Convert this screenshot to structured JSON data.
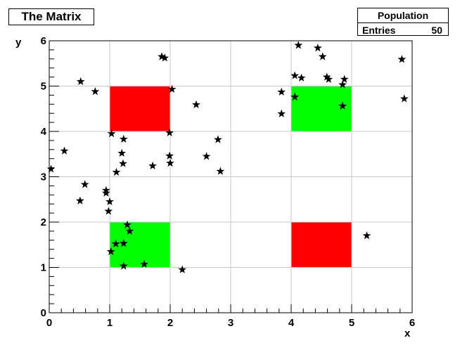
{
  "chart_data": {
    "type": "scatter",
    "title": "The Matrix",
    "xlabel": "x",
    "ylabel": "y",
    "xlim": [
      0,
      6
    ],
    "ylim": [
      0,
      6
    ],
    "grid": true,
    "x_ticks": [
      "0",
      "1",
      "2",
      "3",
      "4",
      "5",
      "6"
    ],
    "y_ticks": [
      "0",
      "1",
      "2",
      "3",
      "4",
      "5",
      "6"
    ],
    "stats": {
      "name": "Population",
      "entries_label": "Entries",
      "entries_value": "50"
    },
    "regions": [
      {
        "x": [
          1,
          2
        ],
        "y": [
          4,
          5
        ],
        "color": "#ff0000"
      },
      {
        "x": [
          4,
          5
        ],
        "y": [
          4,
          5
        ],
        "color": "#00ff00"
      },
      {
        "x": [
          1,
          2
        ],
        "y": [
          1,
          2
        ],
        "color": "#00ff00"
      },
      {
        "x": [
          4,
          5
        ],
        "y": [
          1,
          2
        ],
        "color": "#ff0000"
      }
    ],
    "marker": "star",
    "marker_color": "#000000",
    "points": [
      [
        0.03,
        3.17
      ],
      [
        0.25,
        3.57
      ],
      [
        0.52,
        5.1
      ],
      [
        0.76,
        4.88
      ],
      [
        0.51,
        2.47
      ],
      [
        0.59,
        2.83
      ],
      [
        0.94,
        2.7
      ],
      [
        0.94,
        2.64
      ],
      [
        1.0,
        2.45
      ],
      [
        0.98,
        2.24
      ],
      [
        1.03,
        3.95
      ],
      [
        1.23,
        3.83
      ],
      [
        1.2,
        3.52
      ],
      [
        1.22,
        3.29
      ],
      [
        1.11,
        3.1
      ],
      [
        1.71,
        3.24
      ],
      [
        1.86,
        5.65
      ],
      [
        1.91,
        5.62
      ],
      [
        2.03,
        4.93
      ],
      [
        1.99,
        3.97
      ],
      [
        1.99,
        3.46
      ],
      [
        2.0,
        3.3
      ],
      [
        2.43,
        4.59
      ],
      [
        2.6,
        3.45
      ],
      [
        2.79,
        3.82
      ],
      [
        2.83,
        3.12
      ],
      [
        1.02,
        1.35
      ],
      [
        1.1,
        1.52
      ],
      [
        1.23,
        1.53
      ],
      [
        1.29,
        1.94
      ],
      [
        1.33,
        1.8
      ],
      [
        1.23,
        1.03
      ],
      [
        1.57,
        1.07
      ],
      [
        2.2,
        0.95
      ],
      [
        3.84,
        4.87
      ],
      [
        3.84,
        4.39
      ],
      [
        4.06,
        5.23
      ],
      [
        4.06,
        4.76
      ],
      [
        4.17,
        5.18
      ],
      [
        4.12,
        5.9
      ],
      [
        4.44,
        5.84
      ],
      [
        4.52,
        5.65
      ],
      [
        4.59,
        5.2
      ],
      [
        4.62,
        5.15
      ],
      [
        4.85,
        5.03
      ],
      [
        4.88,
        5.15
      ],
      [
        4.85,
        4.56
      ],
      [
        5.25,
        1.7
      ],
      [
        5.83,
        5.59
      ],
      [
        5.87,
        4.72
      ]
    ]
  }
}
